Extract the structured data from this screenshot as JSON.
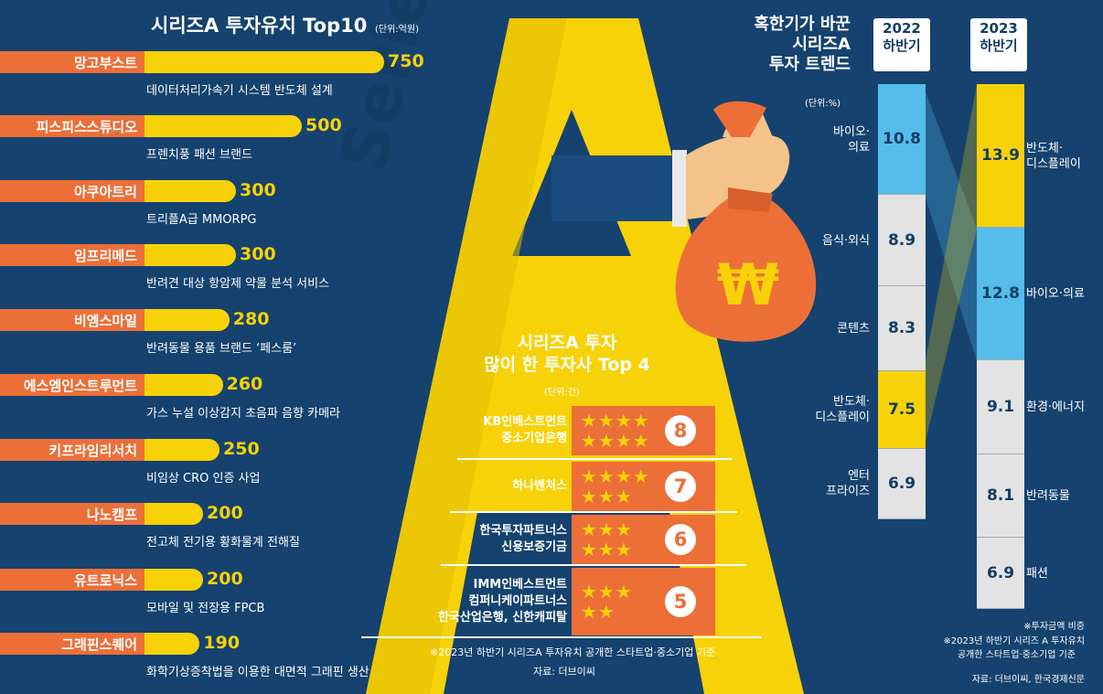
{
  "top10": {
    "title": "시리즈A 투자유치 Top10",
    "unit": "(단위:억원)"
  },
  "chart_data": [
    {
      "type": "bar",
      "title": "시리즈A 투자유치 Top10",
      "unit": "(단위:억원)",
      "categories": [
        "망고부스트",
        "피스피스스튜디오",
        "아쿠아트리",
        "임프리메드",
        "비엠스마일",
        "에스엠인스트루먼트",
        "키프라임리서치",
        "나노캠프",
        "유트로닉스",
        "그래핀스퀘어"
      ],
      "values": [
        750,
        500,
        300,
        300,
        280,
        260,
        250,
        200,
        200,
        190
      ],
      "descriptions": [
        "데이터처리가속기 시스템 반도체 설계",
        "프렌치풍 패션 브랜드",
        "트리플A급 MMORPG",
        "반려견 대상 항암제 약물 분석 서비스",
        "반려동물 용품 브랜드 ‘페스룸’",
        "가스 누설 이상감지 초음파 음향 카메라",
        "비임상 CRO 인증 사업",
        "전고체 전기용 황화물계 전해질",
        "모바일 및 전장용 FPCB",
        "화학기상증착법을 이용한 대면적 그래핀 생산"
      ]
    },
    {
      "type": "bar",
      "title": "시리즈A 투자 많이 한 투자사 Top 4",
      "unit": "(단위:건)",
      "categories": [
        "KB인베스트먼트 중소기업은행",
        "하나벤처스",
        "한국투자파트너스 신용보증기금",
        "IMM인베스트먼트 컴퍼니케이파트너스 한국산업은행, 신한캐피탈"
      ],
      "values": [
        8,
        7,
        6,
        5
      ]
    },
    {
      "type": "bar",
      "title": "혹한기가 바꾼 시리즈A 투자 트렌드",
      "unit": "(단위:%)",
      "series": [
        {
          "name": "2022 하반기",
          "categories": [
            "바이오·의료",
            "음식·외식",
            "콘텐츠",
            "반도체·디스플레이",
            "엔터프라이즈"
          ],
          "values": [
            10.8,
            8.9,
            8.3,
            7.5,
            6.9
          ]
        },
        {
          "name": "2023 하반기",
          "categories": [
            "반도체·디스플레이",
            "바이오·의료",
            "환경·에너지",
            "반려동물",
            "패션"
          ],
          "values": [
            13.9,
            12.8,
            9.1,
            8.1,
            6.9
          ]
        }
      ]
    }
  ],
  "series_word": "Series",
  "investors": {
    "title1": "시리즈A 투자",
    "title2": "많이 한 투자사 Top 4",
    "unit": "(단위:건)",
    "rows": [
      {
        "lines": [
          "KB인베스트먼트",
          "중소기업은행"
        ],
        "count": "8",
        "stars_line1": "★★★★",
        "stars_line2": "★★★★"
      },
      {
        "lines": [
          "하나벤처스"
        ],
        "count": "7",
        "stars_line1": "★★★★",
        "stars_line2": "★★★"
      },
      {
        "lines": [
          "한국투자파트너스",
          "신용보증기금"
        ],
        "count": "6",
        "stars_line1": "★★★",
        "stars_line2": "★★★"
      },
      {
        "lines": [
          "IMM인베스트먼트",
          "컴퍼니케이파트너스",
          "한국산업은행, 신한캐피탈"
        ],
        "count": "5",
        "stars_line1": "★★★",
        "stars_line2": "★★"
      }
    ],
    "note": "※2023년 하반기 시리즈A 투자유치 공개한 스타트업·중소기업 기준",
    "source": "자료: 더브이씨"
  },
  "trend": {
    "title": [
      "혹한기가 바꾼",
      "시리즈A",
      "투자 트렌드"
    ],
    "unit": "(단위:%)",
    "year2022": [
      "2022",
      "하반기"
    ],
    "year2023": [
      "2023",
      "하반기"
    ],
    "col2022": [
      {
        "label": [
          "바이오·",
          "의료"
        ],
        "value": "10.8"
      },
      {
        "label": [
          "음식·외식"
        ],
        "value": "8.9"
      },
      {
        "label": [
          "콘텐츠"
        ],
        "value": "8.3"
      },
      {
        "label": [
          "반도체·",
          "디스플레이"
        ],
        "value": "7.5"
      },
      {
        "label": [
          "엔터",
          "프라이즈"
        ],
        "value": "6.9"
      }
    ],
    "col2023": [
      {
        "label": [
          "반도체·",
          "디스플레이"
        ],
        "value": "13.9"
      },
      {
        "label": [
          "바이오·의료"
        ],
        "value": "12.8"
      },
      {
        "label": [
          "환경·에너지"
        ],
        "value": "9.1"
      },
      {
        "label": [
          "반려동물"
        ],
        "value": "8.1"
      },
      {
        "label": [
          "패션"
        ],
        "value": "6.9"
      }
    ],
    "note1": "※투자금액 비중",
    "note2": "※2023년 하반기 시리즈 A 투자유치",
    "note3": "공개한 스타트업·중소기업 기준",
    "source": "자료: 더브이씨, 한국경제신문"
  },
  "colors": {
    "background": "#15426f",
    "yellow": "#f7d208",
    "orange": "#ec6f38",
    "blue": "#55bde9",
    "gray": "#e3e3e3"
  },
  "icons": [
    "money-bag-icon",
    "won-sign-icon",
    "hand-icon",
    "star-icon"
  ]
}
